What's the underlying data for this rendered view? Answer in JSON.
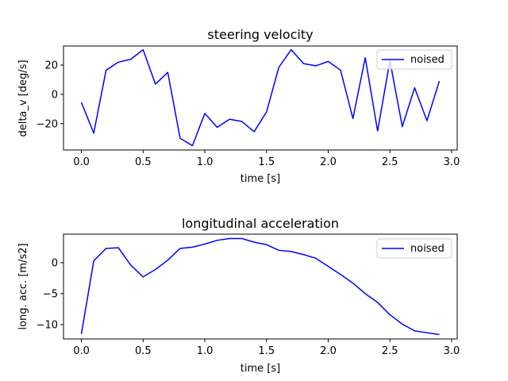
{
  "chart_data": [
    {
      "type": "line",
      "title": "steering velocity",
      "xlabel": "time [s]",
      "ylabel": "delta_v [deg/s]",
      "xlim": [
        -0.145,
        3.045
      ],
      "ylim": [
        -38.0,
        33.0
      ],
      "xticks": [
        0.0,
        0.5,
        1.0,
        1.5,
        2.0,
        2.5,
        3.0
      ],
      "xtick_labels": [
        "0.0",
        "0.5",
        "1.0",
        "1.5",
        "2.0",
        "2.5",
        "3.0"
      ],
      "yticks": [
        -20,
        0,
        20
      ],
      "ytick_labels": [
        "−20",
        "0",
        "20"
      ],
      "grid": false,
      "legend_position": "top-right",
      "series": [
        {
          "name": "noised",
          "color": "#0000ff",
          "x": [
            0.0,
            0.1,
            0.2,
            0.3,
            0.4,
            0.5,
            0.6,
            0.7,
            0.8,
            0.9,
            1.0,
            1.1,
            1.2,
            1.3,
            1.4,
            1.5,
            1.6,
            1.7,
            1.8,
            1.9,
            2.0,
            2.1,
            2.2,
            2.3,
            2.4,
            2.5,
            2.6,
            2.7,
            2.8,
            2.9
          ],
          "y": [
            -5.5,
            -26.5,
            16.5,
            22.0,
            24.0,
            30.5,
            7.0,
            15.0,
            -30.0,
            -35.0,
            -13.0,
            -22.5,
            -17.0,
            -18.5,
            -25.5,
            -12.0,
            18.5,
            30.5,
            21.0,
            19.5,
            22.5,
            16.5,
            -16.5,
            25.0,
            -25.0,
            23.0,
            -22.0,
            4.5,
            -18.0,
            9.0
          ]
        }
      ]
    },
    {
      "type": "line",
      "title": "longitudinal acceleration",
      "xlabel": "time [s]",
      "ylabel": "long. acc. [m/s2]",
      "xlim": [
        -0.145,
        3.045
      ],
      "ylim": [
        -12.3,
        4.6
      ],
      "xticks": [
        0.0,
        0.5,
        1.0,
        1.5,
        2.0,
        2.5,
        3.0
      ],
      "xtick_labels": [
        "0.0",
        "0.5",
        "1.0",
        "1.5",
        "2.0",
        "2.5",
        "3.0"
      ],
      "yticks": [
        -10,
        -5,
        0
      ],
      "ytick_labels": [
        "−10",
        "−5",
        "0"
      ],
      "grid": false,
      "legend_position": "top-right",
      "series": [
        {
          "name": "noised",
          "color": "#0000ff",
          "x": [
            0.0,
            0.1,
            0.2,
            0.3,
            0.4,
            0.5,
            0.6,
            0.7,
            0.8,
            0.9,
            1.0,
            1.1,
            1.2,
            1.3,
            1.4,
            1.5,
            1.6,
            1.7,
            1.8,
            1.9,
            2.0,
            2.1,
            2.2,
            2.3,
            2.4,
            2.5,
            2.6,
            2.7,
            2.8,
            2.9
          ],
          "y": [
            -11.5,
            0.3,
            2.3,
            2.4,
            -0.4,
            -2.3,
            -1.1,
            0.4,
            2.3,
            2.5,
            3.0,
            3.6,
            3.9,
            3.9,
            3.3,
            2.9,
            2.0,
            1.8,
            1.3,
            0.7,
            -0.6,
            -1.9,
            -3.3,
            -5.0,
            -6.4,
            -8.4,
            -9.9,
            -11.0,
            -11.3,
            -11.6
          ]
        }
      ]
    }
  ]
}
